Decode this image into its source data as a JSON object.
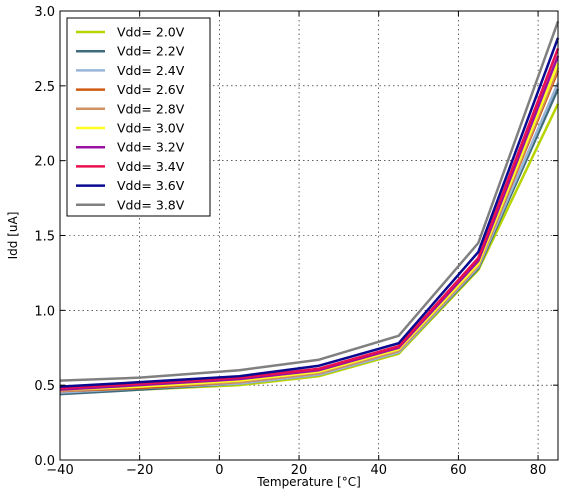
{
  "chart_data": {
    "type": "line",
    "xlabel": "Temperature [°C]",
    "ylabel": "Idd [uA]",
    "xlim": [
      -40,
      85
    ],
    "ylim": [
      0.0,
      3.0
    ],
    "xticks": [
      -40,
      -20,
      0,
      20,
      40,
      60,
      80
    ],
    "xtick_labels": [
      "−40",
      "−20",
      "0",
      "20",
      "40",
      "60",
      "80"
    ],
    "yticks": [
      0.0,
      0.5,
      1.0,
      1.5,
      2.0,
      2.5,
      3.0
    ],
    "ytick_labels": [
      "0.0",
      "0.5",
      "1.0",
      "1.5",
      "2.0",
      "2.5",
      "3.0"
    ],
    "grid": true,
    "legend_position": "top-left",
    "x": [
      -40,
      -20,
      5,
      25,
      45,
      65,
      85
    ],
    "series": [
      {
        "name": "Vdd= 2.0V",
        "color": "#b8d400",
        "values": [
          0.45,
          0.47,
          0.5,
          0.56,
          0.71,
          1.27,
          2.38
        ]
      },
      {
        "name": "Vdd= 2.2V",
        "color": "#3f6c7c",
        "values": [
          0.44,
          0.47,
          0.51,
          0.57,
          0.72,
          1.28,
          2.48
        ]
      },
      {
        "name": "Vdd= 2.4V",
        "color": "#9ab4d8",
        "values": [
          0.45,
          0.48,
          0.51,
          0.57,
          0.72,
          1.29,
          2.52
        ]
      },
      {
        "name": "Vdd= 2.6V",
        "color": "#d05a10",
        "values": [
          0.46,
          0.48,
          0.52,
          0.58,
          0.73,
          1.3,
          2.6
        ]
      },
      {
        "name": "Vdd= 2.8V",
        "color": "#d09060",
        "values": [
          0.46,
          0.49,
          0.52,
          0.58,
          0.73,
          1.3,
          2.62
        ]
      },
      {
        "name": "Vdd= 3.0V",
        "color": "#ffff20",
        "values": [
          0.47,
          0.49,
          0.53,
          0.59,
          0.74,
          1.31,
          2.65
        ]
      },
      {
        "name": "Vdd= 3.2V",
        "color": "#9a10a0",
        "values": [
          0.47,
          0.5,
          0.54,
          0.6,
          0.75,
          1.33,
          2.7
        ]
      },
      {
        "name": "Vdd= 3.4V",
        "color": "#e81050",
        "values": [
          0.48,
          0.51,
          0.55,
          0.61,
          0.76,
          1.35,
          2.75
        ]
      },
      {
        "name": "Vdd= 3.6V",
        "color": "#0a0a90",
        "values": [
          0.49,
          0.52,
          0.56,
          0.63,
          0.78,
          1.39,
          2.82
        ]
      },
      {
        "name": "Vdd= 3.8V",
        "color": "#808080",
        "values": [
          0.53,
          0.55,
          0.6,
          0.67,
          0.83,
          1.45,
          2.93
        ]
      }
    ]
  }
}
